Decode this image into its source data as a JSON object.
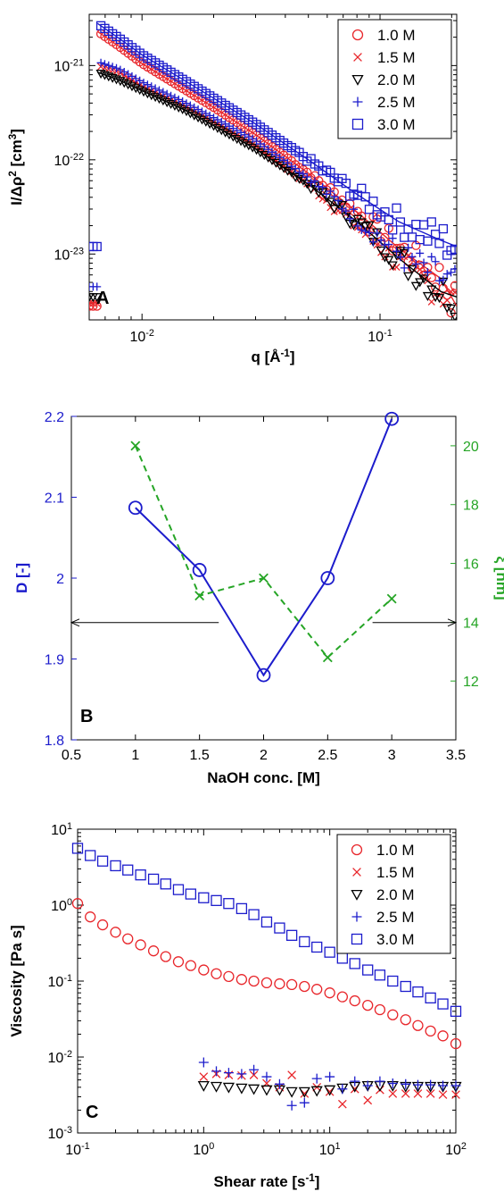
{
  "colors": {
    "red": "#e8262b",
    "black": "#000000",
    "blue": "#1c1ccc",
    "green": "#26a526"
  },
  "chart_data": [
    {
      "panel": "A",
      "type": "scatter",
      "xscale": "log",
      "yscale": "log",
      "xlim": [
        0.006,
        0.21
      ],
      "ylim": [
        2e-24,
        3.5e-21
      ],
      "xlabel": "q [Å",
      "xlabel_sup": "-1",
      "xlabel_end": "]",
      "ylabel": "I/Δρ",
      "ylabel_sup1": "2",
      "ylabel_mid": " [cm",
      "ylabel_sup2": "3",
      "ylabel_end": "]",
      "xticks": [
        {
          "v": 0.01,
          "base": "10",
          "exp": "-2"
        },
        {
          "v": 0.1,
          "base": "10",
          "exp": "-1"
        }
      ],
      "yticks": [
        {
          "v": 1e-23,
          "base": "10",
          "exp": "-23"
        },
        {
          "v": 1e-22,
          "base": "10",
          "exp": "-22"
        },
        {
          "v": 1e-21,
          "base": "10",
          "exp": "-21"
        }
      ],
      "legend_position": "top-right",
      "series": [
        {
          "name": "1.0 M",
          "color": "red",
          "marker": "circle",
          "line": true,
          "x": [
            0.0065,
            0.008,
            0.01,
            0.015,
            0.02,
            0.03,
            0.05,
            0.08,
            0.12,
            0.18,
            0.21
          ],
          "y": [
            2.3e-21,
            1.6e-21,
            1.05e-21,
            5.6e-22,
            3.6e-22,
            1.85e-22,
            7.2e-23,
            2.8e-23,
            1.15e-23,
            5.5e-24,
            2.8e-24
          ]
        },
        {
          "name": "1.5 M",
          "color": "red",
          "marker": "x",
          "line": false,
          "x": [
            0.0065,
            0.008,
            0.01,
            0.015,
            0.02,
            0.03,
            0.05,
            0.08,
            0.12,
            0.18,
            0.21
          ],
          "y": [
            1e-21,
            8.5e-22,
            6e-22,
            3.7e-22,
            2.5e-22,
            1.4e-22,
            5.5e-23,
            2e-23,
            8e-24,
            4e-24,
            3e-24
          ]
        },
        {
          "name": "2.0 M",
          "color": "black",
          "marker": "triangle",
          "line": true,
          "x": [
            0.0065,
            0.008,
            0.01,
            0.015,
            0.02,
            0.03,
            0.05,
            0.08,
            0.12,
            0.18,
            0.21
          ],
          "y": [
            8.5e-22,
            7e-22,
            5.4e-22,
            3.4e-22,
            2.3e-22,
            1.3e-22,
            5.5e-23,
            2.2e-23,
            9e-24,
            4e-24,
            3.5e-24
          ]
        },
        {
          "name": "2.5 M",
          "color": "blue",
          "marker": "plus",
          "line": false,
          "x": [
            0.0065,
            0.008,
            0.01,
            0.015,
            0.02,
            0.03,
            0.05,
            0.08,
            0.12,
            0.18,
            0.21
          ],
          "y": [
            1.1e-21,
            9.2e-22,
            6.7e-22,
            4.1e-22,
            2.8e-22,
            1.6e-22,
            6.5e-23,
            2.4e-23,
            1e-23,
            5.5e-24,
            4.5e-24
          ]
        },
        {
          "name": "3.0 M",
          "color": "blue",
          "marker": "square",
          "line": true,
          "x": [
            0.0065,
            0.008,
            0.01,
            0.015,
            0.02,
            0.03,
            0.05,
            0.08,
            0.12,
            0.18,
            0.21
          ],
          "y": [
            2.8e-21,
            1.95e-21,
            1.3e-21,
            7e-22,
            4.5e-22,
            2.4e-22,
            1e-22,
            4.3e-23,
            2.2e-23,
            1.4e-23,
            1.2e-23
          ]
        }
      ]
    },
    {
      "panel": "B",
      "type": "line",
      "xlim": [
        0.5,
        3.5
      ],
      "ylim": [
        1.8,
        2.2
      ],
      "y2lim": [
        10,
        21
      ],
      "xlabel": "NaOH conc. [M]",
      "ylabel": "D [-]",
      "y2label": "ξ [nm]",
      "xticks": [
        "0.5",
        "1",
        "1.5",
        "2",
        "2.5",
        "3",
        "3.5"
      ],
      "yticks": [
        "1.8",
        "1.9",
        "2",
        "2.1",
        "2.2"
      ],
      "y2ticks": [
        "12",
        "14",
        "16",
        "18",
        "20"
      ],
      "series": [
        {
          "axis": "left",
          "color": "blue",
          "marker": "circle",
          "dash": false,
          "x": [
            1,
            1.5,
            2,
            2.5,
            3
          ],
          "y": [
            2.087,
            2.01,
            1.88,
            2.0,
            2.197
          ]
        },
        {
          "axis": "right",
          "color": "green",
          "marker": "x",
          "dash": true,
          "x": [
            1,
            1.5,
            2,
            2.5,
            3
          ],
          "y": [
            20.0,
            14.9,
            15.5,
            12.8,
            14.8
          ]
        }
      ],
      "arrows": [
        {
          "direction": "left",
          "from": 1.65,
          "to": 0.5,
          "y": 1.945
        },
        {
          "direction": "right",
          "from": 2.85,
          "to": 3.5,
          "y": 1.945
        }
      ]
    },
    {
      "panel": "C",
      "type": "scatter",
      "xscale": "log",
      "yscale": "log",
      "xlim": [
        0.1,
        100
      ],
      "ylim": [
        0.001,
        10
      ],
      "xlabel": "Shear rate [s",
      "xlabel_sup": "-1",
      "xlabel_end": "]",
      "ylabel": "Viscosity [Pa s]",
      "xticks": [
        {
          "v": 0.1,
          "base": "10",
          "exp": "-1"
        },
        {
          "v": 1,
          "base": "10",
          "exp": "0"
        },
        {
          "v": 10,
          "base": "10",
          "exp": "1"
        },
        {
          "v": 100,
          "base": "10",
          "exp": "2"
        }
      ],
      "yticks": [
        {
          "v": 0.001,
          "base": "10",
          "exp": "-3"
        },
        {
          "v": 0.01,
          "base": "10",
          "exp": "-2"
        },
        {
          "v": 0.1,
          "base": "10",
          "exp": "-1"
        },
        {
          "v": 1,
          "base": "10",
          "exp": "0"
        },
        {
          "v": 10,
          "base": "10",
          "exp": "1"
        }
      ],
      "legend_position": "top-right",
      "series": [
        {
          "name": "1.0 M",
          "color": "red",
          "marker": "circle",
          "x": [
            0.1,
            0.126,
            0.158,
            0.2,
            0.25,
            0.316,
            0.4,
            0.5,
            0.63,
            0.79,
            1.0,
            1.26,
            1.58,
            2.0,
            2.5,
            3.16,
            4.0,
            5.0,
            6.3,
            7.9,
            10,
            12.6,
            15.8,
            20,
            25,
            31.6,
            40,
            50,
            63,
            79,
            100
          ],
          "y": [
            1.05,
            0.7,
            0.55,
            0.44,
            0.36,
            0.3,
            0.25,
            0.21,
            0.18,
            0.16,
            0.14,
            0.125,
            0.115,
            0.105,
            0.1,
            0.095,
            0.092,
            0.09,
            0.085,
            0.078,
            0.07,
            0.062,
            0.055,
            0.048,
            0.042,
            0.036,
            0.031,
            0.026,
            0.022,
            0.019,
            0.015
          ]
        },
        {
          "name": "1.5 M",
          "color": "red",
          "marker": "x",
          "x": [
            1.0,
            1.26,
            1.58,
            2.0,
            2.5,
            3.16,
            4.0,
            5.0,
            6.3,
            7.9,
            10,
            12.6,
            15.8,
            20,
            25,
            31.6,
            40,
            50,
            63,
            79,
            100
          ],
          "y": [
            0.0055,
            0.006,
            0.0058,
            0.0057,
            0.0058,
            0.0045,
            0.004,
            0.0058,
            0.0033,
            0.004,
            0.0035,
            0.0024,
            0.0038,
            0.0027,
            0.0037,
            0.0033,
            0.0033,
            0.0033,
            0.0033,
            0.0032,
            0.0032
          ]
        },
        {
          "name": "2.0 M",
          "color": "black",
          "marker": "triangle",
          "x": [
            1.0,
            1.26,
            1.58,
            2.0,
            2.5,
            3.16,
            4.0,
            5.0,
            6.3,
            7.9,
            10,
            12.6,
            15.8,
            20,
            25,
            31.6,
            40,
            50,
            63,
            79,
            100
          ],
          "y": [
            0.0042,
            0.0041,
            0.004,
            0.0039,
            0.0038,
            0.0037,
            0.0037,
            0.0035,
            0.0035,
            0.0036,
            0.0037,
            0.0039,
            0.0041,
            0.0042,
            0.0042,
            0.0042,
            0.0041,
            0.0041,
            0.0041,
            0.0041,
            0.0041
          ]
        },
        {
          "name": "2.5 M",
          "color": "blue",
          "marker": "plus",
          "x": [
            1.0,
            1.26,
            1.58,
            2.0,
            2.5,
            3.16,
            4.0,
            5.0,
            6.3,
            7.9,
            10,
            12.6,
            15.8,
            20,
            25,
            31.6,
            40,
            50,
            63,
            79,
            100
          ],
          "y": [
            0.0085,
            0.0065,
            0.0062,
            0.006,
            0.0068,
            0.0055,
            0.0044,
            0.0023,
            0.0025,
            0.0052,
            0.0055,
            0.0038,
            0.0048,
            0.0042,
            0.0048,
            0.0045,
            0.0044,
            0.0043,
            0.0043,
            0.0042,
            0.0042
          ]
        },
        {
          "name": "3.0 M",
          "color": "blue",
          "marker": "square",
          "x": [
            0.1,
            0.126,
            0.158,
            0.2,
            0.25,
            0.316,
            0.4,
            0.5,
            0.63,
            0.79,
            1.0,
            1.26,
            1.58,
            2.0,
            2.5,
            3.16,
            4.0,
            5.0,
            6.3,
            7.9,
            10,
            12.6,
            15.8,
            20,
            25,
            31.6,
            40,
            50,
            63,
            79,
            100
          ],
          "y": [
            5.6,
            4.5,
            3.8,
            3.3,
            2.9,
            2.5,
            2.2,
            1.9,
            1.6,
            1.4,
            1.25,
            1.15,
            1.05,
            0.9,
            0.75,
            0.6,
            0.5,
            0.4,
            0.33,
            0.28,
            0.24,
            0.2,
            0.17,
            0.14,
            0.12,
            0.1,
            0.085,
            0.072,
            0.06,
            0.05,
            0.04
          ]
        }
      ]
    }
  ]
}
